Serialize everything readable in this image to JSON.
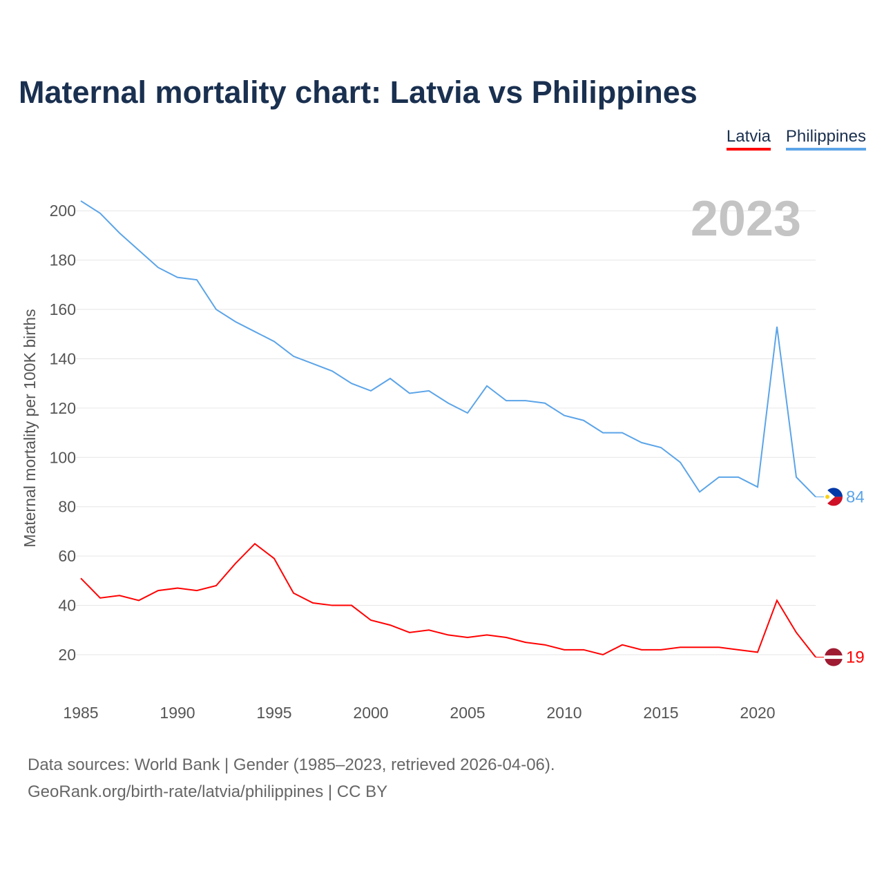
{
  "chart_data": {
    "type": "line",
    "title": "Maternal mortality chart: Latvia vs Philippines",
    "ylabel": "Maternal mortality per 100K births",
    "xlabel": "",
    "year_label": "2023",
    "ylim": [
      0,
      210
    ],
    "xlim": [
      1985,
      2023
    ],
    "yticks": [
      20,
      40,
      60,
      80,
      100,
      120,
      140,
      160,
      180,
      200
    ],
    "xticks": [
      1985,
      1990,
      1995,
      2000,
      2005,
      2010,
      2015,
      2020
    ],
    "grid": true,
    "legend_position": "top-right",
    "x": [
      1985,
      1986,
      1987,
      1988,
      1989,
      1990,
      1991,
      1992,
      1993,
      1994,
      1995,
      1996,
      1997,
      1998,
      1999,
      2000,
      2001,
      2002,
      2003,
      2004,
      2005,
      2006,
      2007,
      2008,
      2009,
      2010,
      2011,
      2012,
      2013,
      2014,
      2015,
      2016,
      2017,
      2018,
      2019,
      2020,
      2021,
      2022,
      2023
    ],
    "series": [
      {
        "name": "Latvia",
        "color": "#ff0000",
        "end_label": "19",
        "values": [
          51,
          43,
          44,
          42,
          46,
          47,
          46,
          48,
          57,
          65,
          59,
          45,
          41,
          40,
          40,
          34,
          32,
          29,
          30,
          28,
          27,
          28,
          27,
          25,
          24,
          22,
          22,
          20,
          24,
          22,
          22,
          23,
          23,
          23,
          22,
          21,
          42,
          29,
          19
        ]
      },
      {
        "name": "Philippines",
        "color": "#5ba4e8",
        "end_label": "84",
        "values": [
          204,
          199,
          191,
          184,
          177,
          173,
          172,
          160,
          155,
          151,
          147,
          141,
          138,
          135,
          130,
          127,
          132,
          126,
          127,
          122,
          118,
          129,
          123,
          123,
          122,
          117,
          115,
          110,
          110,
          106,
          104,
          98,
          86,
          92,
          92,
          88,
          153,
          92,
          84
        ]
      }
    ]
  },
  "source": {
    "line1": "Data sources: World Bank | Gender (1985–2023, retrieved 2026-04-06).",
    "line2": "GeoRank.org/birth-rate/latvia/philippines | CC BY"
  }
}
